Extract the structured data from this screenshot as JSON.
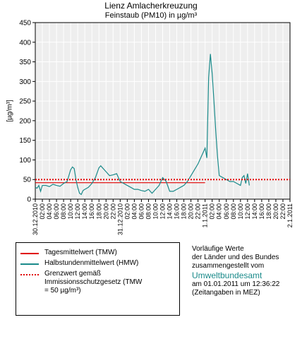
{
  "chart_data": {
    "type": "line",
    "title": "Lienz Amlacherkreuzung",
    "subtitle": "Feinstaub (PM10) in µg/m³",
    "y_label": "[µg/m³]",
    "ylim": [
      0,
      450
    ],
    "yticks": [
      0,
      50,
      100,
      150,
      200,
      250,
      300,
      350,
      400,
      450
    ],
    "xlim": [
      0,
      72
    ],
    "xticks": [
      {
        "value": 0,
        "label": "30.12.2010"
      },
      {
        "value": 2,
        "label": "02:00"
      },
      {
        "value": 4,
        "label": "04:00"
      },
      {
        "value": 6,
        "label": "06:00"
      },
      {
        "value": 8,
        "label": "08:00"
      },
      {
        "value": 10,
        "label": "10:00"
      },
      {
        "value": 12,
        "label": "12:00"
      },
      {
        "value": 14,
        "label": "14:00"
      },
      {
        "value": 16,
        "label": "16:00"
      },
      {
        "value": 18,
        "label": "18:00"
      },
      {
        "value": 20,
        "label": "20:00"
      },
      {
        "value": 22,
        "label": "22:00"
      },
      {
        "value": 24,
        "label": "31.12.2010"
      },
      {
        "value": 26,
        "label": "02:00"
      },
      {
        "value": 28,
        "label": "04:00"
      },
      {
        "value": 30,
        "label": "06:00"
      },
      {
        "value": 32,
        "label": "08:00"
      },
      {
        "value": 34,
        "label": "10:00"
      },
      {
        "value": 36,
        "label": "12:00"
      },
      {
        "value": 38,
        "label": "14:00"
      },
      {
        "value": 40,
        "label": "16:00"
      },
      {
        "value": 42,
        "label": "18:00"
      },
      {
        "value": 44,
        "label": "20:00"
      },
      {
        "value": 46,
        "label": "22:00"
      },
      {
        "value": 48,
        "label": "1.1.2011"
      },
      {
        "value": 50,
        "label": "02:00"
      },
      {
        "value": 52,
        "label": "04:00"
      },
      {
        "value": 54,
        "label": "06:00"
      },
      {
        "value": 56,
        "label": "08:00"
      },
      {
        "value": 58,
        "label": "10:00"
      },
      {
        "value": 60,
        "label": "12:00"
      },
      {
        "value": 62,
        "label": "14:00"
      },
      {
        "value": 64,
        "label": "16:00"
      },
      {
        "value": 66,
        "label": "18:00"
      },
      {
        "value": 68,
        "label": "20:00"
      },
      {
        "value": 70,
        "label": "22:00"
      },
      {
        "value": 72,
        "label": "2.1.2011"
      }
    ],
    "grid": true,
    "series": [
      {
        "name": "Tagesmittelwert (TMW)",
        "color": "#e00000",
        "style": "solid",
        "x": [
          0,
          24,
          24,
          48
        ],
        "values": [
          42,
          42,
          42,
          42
        ]
      },
      {
        "name": "Halbstundenmittelwert (HMW)",
        "color": "#1a8a8a",
        "style": "solid",
        "x": [
          0,
          0.5,
          1,
          1.5,
          2,
          3,
          4,
          5,
          6,
          7,
          8,
          9,
          10,
          10.5,
          11,
          11.5,
          12,
          12.5,
          13,
          13.5,
          14,
          15,
          16,
          17,
          18,
          18.5,
          19,
          20,
          21,
          22,
          23,
          24,
          25,
          26,
          27,
          28,
          29,
          30,
          31,
          32,
          33,
          34,
          35,
          36,
          37,
          38,
          39,
          40,
          41,
          42,
          43,
          44,
          45,
          46,
          47,
          47.5,
          48,
          48.5,
          49,
          49.5,
          50,
          50.5,
          51,
          51.5,
          52,
          53,
          54,
          55,
          56,
          57,
          58,
          58.5,
          59,
          59.5,
          60,
          60.5
        ],
        "values": [
          30,
          28,
          35,
          20,
          35,
          35,
          32,
          38,
          35,
          33,
          40,
          45,
          75,
          82,
          78,
          50,
          30,
          15,
          12,
          22,
          25,
          30,
          40,
          55,
          80,
          85,
          80,
          70,
          60,
          62,
          65,
          45,
          40,
          35,
          30,
          25,
          25,
          22,
          20,
          25,
          15,
          25,
          35,
          55,
          45,
          20,
          20,
          25,
          30,
          35,
          45,
          60,
          75,
          90,
          110,
          120,
          130,
          105,
          310,
          370,
          320,
          250,
          175,
          110,
          60,
          55,
          50,
          45,
          45,
          40,
          35,
          55,
          60,
          40,
          65,
          35
        ]
      },
      {
        "name": "Grenzwert gemäß Immissionsschutzgesetz (TMW = 50 µg/m³)",
        "color": "#e00000",
        "style": "dotted",
        "x": [
          0,
          72
        ],
        "values": [
          50,
          50
        ]
      }
    ],
    "note": {
      "lines": [
        "Vorläufige Werte",
        "der Länder und des Bundes",
        "zusammengestellt vom"
      ],
      "source": "Umweltbundesamt",
      "timestamp": "am 01.01.2011 um 12:36:22",
      "timezone": "(Zeitangaben in MEZ)"
    }
  }
}
